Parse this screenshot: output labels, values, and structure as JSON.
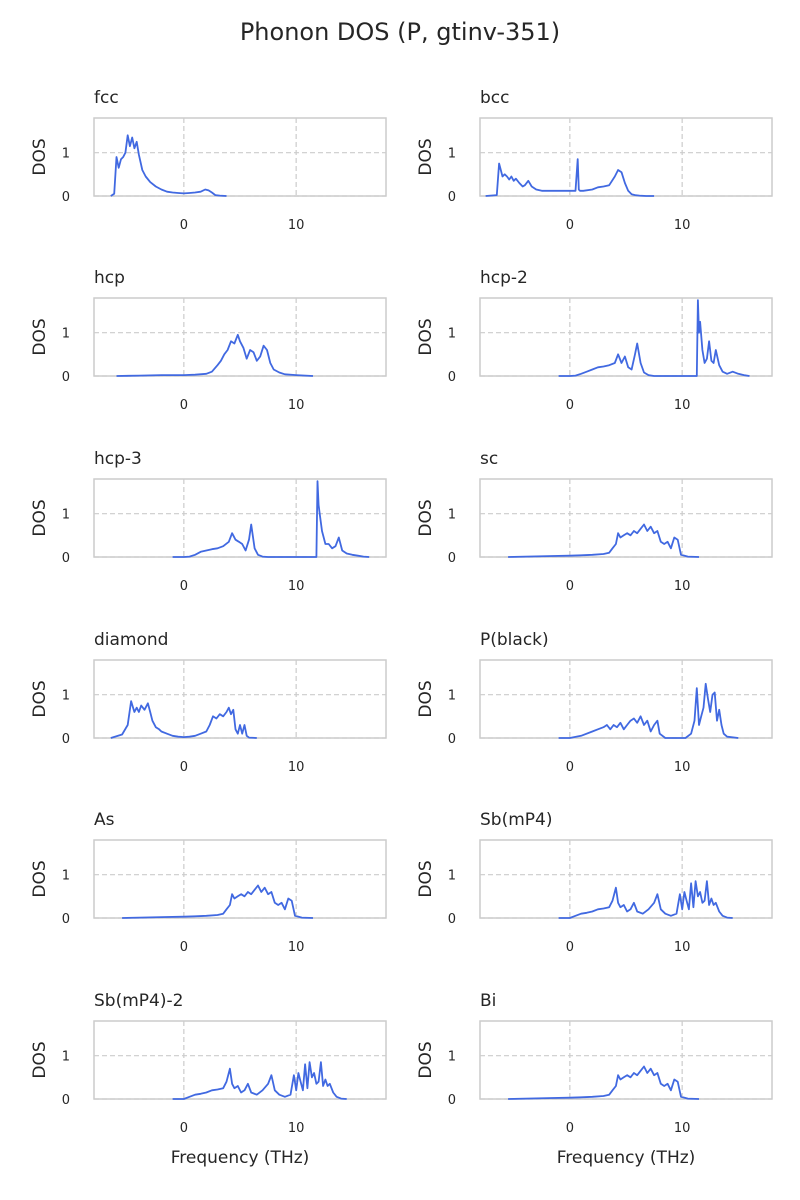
{
  "figure": {
    "title": "Phonon DOS (P, gtinv-351)"
  },
  "colors": {
    "line": "#4169e1",
    "grid": "#cccccc",
    "frame": "#cccccc",
    "text": "#262626"
  },
  "chart_data": [
    {
      "type": "line",
      "title": "fcc",
      "xlabel": "",
      "ylabel": "DOS",
      "xlim": [
        -8,
        18
      ],
      "ylim": [
        0,
        1.8
      ],
      "xticks": [
        0,
        10
      ],
      "yticks": [
        0,
        1
      ],
      "grid": true,
      "legend": "none",
      "x": [
        -6.5,
        -6.2,
        -6.0,
        -5.8,
        -5.6,
        -5.4,
        -5.2,
        -5.0,
        -4.8,
        -4.6,
        -4.4,
        -4.2,
        -4.0,
        -3.7,
        -3.4,
        -3.0,
        -2.5,
        -2.0,
        -1.5,
        -1.0,
        -0.5,
        0.0,
        0.5,
        1.0,
        1.5,
        1.9,
        2.2,
        2.5,
        2.8,
        3.2,
        3.8
      ],
      "y": [
        0.0,
        0.05,
        0.9,
        0.65,
        0.85,
        0.9,
        1.0,
        1.4,
        1.15,
        1.35,
        1.1,
        1.25,
        0.95,
        0.6,
        0.45,
        0.32,
        0.22,
        0.15,
        0.1,
        0.08,
        0.07,
        0.06,
        0.07,
        0.08,
        0.1,
        0.15,
        0.13,
        0.08,
        0.02,
        0.01,
        0.0
      ]
    },
    {
      "type": "line",
      "title": "bcc",
      "xlabel": "",
      "ylabel": "DOS",
      "xlim": [
        -8,
        18
      ],
      "ylim": [
        0,
        1.8
      ],
      "xticks": [
        0,
        10
      ],
      "yticks": [
        0,
        1
      ],
      "grid": true,
      "legend": "none",
      "x": [
        -7.5,
        -6.5,
        -6.3,
        -6.0,
        -5.8,
        -5.6,
        -5.4,
        -5.2,
        -5.0,
        -4.8,
        -4.5,
        -4.2,
        -4.0,
        -3.7,
        -3.4,
        -3.0,
        -2.5,
        -2.0,
        -1.0,
        0.0,
        0.5,
        0.7,
        0.8,
        0.9,
        1.2,
        2.0,
        2.5,
        3.0,
        3.5,
        4.0,
        4.3,
        4.6,
        4.9,
        5.2,
        5.5,
        5.8,
        6.2,
        6.8,
        7.5
      ],
      "y": [
        0.0,
        0.02,
        0.75,
        0.45,
        0.5,
        0.45,
        0.38,
        0.45,
        0.35,
        0.4,
        0.3,
        0.22,
        0.25,
        0.35,
        0.22,
        0.15,
        0.12,
        0.12,
        0.12,
        0.12,
        0.12,
        0.85,
        0.15,
        0.12,
        0.12,
        0.15,
        0.2,
        0.22,
        0.25,
        0.45,
        0.6,
        0.55,
        0.3,
        0.12,
        0.04,
        0.02,
        0.01,
        0.0,
        0.0
      ]
    },
    {
      "type": "line",
      "title": "hcp",
      "xlabel": "",
      "ylabel": "DOS",
      "xlim": [
        -8,
        18
      ],
      "ylim": [
        0,
        1.8
      ],
      "xticks": [
        0,
        10
      ],
      "yticks": [
        0,
        1
      ],
      "grid": true,
      "legend": "none",
      "x": [
        -6.0,
        -4.0,
        -2.0,
        0.0,
        1.0,
        2.0,
        2.5,
        3.0,
        3.3,
        3.6,
        3.9,
        4.2,
        4.5,
        4.8,
        5.0,
        5.3,
        5.6,
        5.9,
        6.2,
        6.5,
        6.8,
        7.1,
        7.4,
        7.7,
        8.0,
        8.5,
        9.0,
        10.0,
        11.5
      ],
      "y": [
        0.0,
        0.01,
        0.02,
        0.02,
        0.03,
        0.05,
        0.1,
        0.25,
        0.35,
        0.5,
        0.6,
        0.8,
        0.75,
        0.95,
        0.8,
        0.65,
        0.4,
        0.6,
        0.55,
        0.35,
        0.45,
        0.7,
        0.6,
        0.3,
        0.15,
        0.08,
        0.04,
        0.02,
        0.0
      ]
    },
    {
      "type": "line",
      "title": "hcp-2",
      "xlabel": "",
      "ylabel": "DOS",
      "xlim": [
        -8,
        18
      ],
      "ylim": [
        0,
        1.8
      ],
      "xticks": [
        0,
        10
      ],
      "yticks": [
        0,
        1
      ],
      "grid": true,
      "legend": "none",
      "x": [
        -1.0,
        0.0,
        0.5,
        1.0,
        1.5,
        2.0,
        2.5,
        3.0,
        3.5,
        4.0,
        4.3,
        4.6,
        4.9,
        5.2,
        5.5,
        5.8,
        6.0,
        6.3,
        6.6,
        7.0,
        7.5,
        8.0,
        9.0,
        10.0,
        11.3,
        11.4,
        11.5,
        11.6,
        11.8,
        12.0,
        12.2,
        12.4,
        12.6,
        12.8,
        13.0,
        13.3,
        13.6,
        14.0,
        14.5,
        15.0,
        15.5,
        16.0
      ],
      "y": [
        0.0,
        0.0,
        0.01,
        0.05,
        0.1,
        0.15,
        0.2,
        0.22,
        0.25,
        0.3,
        0.5,
        0.3,
        0.45,
        0.2,
        0.15,
        0.5,
        0.75,
        0.3,
        0.08,
        0.02,
        0.0,
        0.0,
        0.0,
        0.0,
        0.0,
        1.75,
        1.0,
        1.25,
        0.6,
        0.3,
        0.4,
        0.8,
        0.35,
        0.3,
        0.6,
        0.25,
        0.1,
        0.05,
        0.1,
        0.05,
        0.02,
        0.0
      ]
    },
    {
      "type": "line",
      "title": "hcp-3",
      "xlabel": "",
      "ylabel": "DOS",
      "xlim": [
        -8,
        18
      ],
      "ylim": [
        0,
        1.8
      ],
      "xticks": [
        0,
        10
      ],
      "yticks": [
        0,
        1
      ],
      "grid": true,
      "legend": "none",
      "x": [
        -1.0,
        0.0,
        0.5,
        1.0,
        1.5,
        2.0,
        2.5,
        3.0,
        3.5,
        4.0,
        4.3,
        4.6,
        4.9,
        5.2,
        5.5,
        5.8,
        6.0,
        6.3,
        6.6,
        7.0,
        7.5,
        9.0,
        11.0,
        11.8,
        11.9,
        12.0,
        12.1,
        12.3,
        12.6,
        12.9,
        13.2,
        13.5,
        13.8,
        14.1,
        14.5,
        15.0,
        15.5,
        16.0,
        16.5
      ],
      "y": [
        0.0,
        0.0,
        0.01,
        0.05,
        0.12,
        0.15,
        0.18,
        0.2,
        0.25,
        0.35,
        0.55,
        0.4,
        0.35,
        0.3,
        0.15,
        0.4,
        0.75,
        0.2,
        0.05,
        0.01,
        0.0,
        0.0,
        0.0,
        0.0,
        1.75,
        1.2,
        1.0,
        0.6,
        0.3,
        0.3,
        0.2,
        0.25,
        0.45,
        0.15,
        0.08,
        0.05,
        0.03,
        0.01,
        0.0
      ]
    },
    {
      "type": "line",
      "title": "sc",
      "xlabel": "",
      "ylabel": "DOS",
      "xlim": [
        -8,
        18
      ],
      "ylim": [
        0,
        1.8
      ],
      "xticks": [
        0,
        10
      ],
      "yticks": [
        0,
        1
      ],
      "grid": true,
      "legend": "none",
      "x": [
        -5.5,
        -4.0,
        -2.0,
        0.0,
        1.0,
        2.0,
        3.0,
        3.5,
        3.8,
        4.1,
        4.3,
        4.5,
        4.8,
        5.1,
        5.4,
        5.7,
        6.0,
        6.3,
        6.6,
        6.9,
        7.2,
        7.5,
        7.8,
        8.1,
        8.4,
        8.7,
        9.0,
        9.3,
        9.6,
        9.9,
        10.5,
        11.5
      ],
      "y": [
        0.0,
        0.01,
        0.02,
        0.03,
        0.04,
        0.05,
        0.07,
        0.1,
        0.2,
        0.3,
        0.55,
        0.45,
        0.5,
        0.55,
        0.5,
        0.6,
        0.55,
        0.65,
        0.75,
        0.6,
        0.7,
        0.55,
        0.6,
        0.35,
        0.3,
        0.35,
        0.2,
        0.45,
        0.4,
        0.05,
        0.01,
        0.0
      ]
    },
    {
      "type": "line",
      "title": "diamond",
      "xlabel": "",
      "ylabel": "DOS",
      "xlim": [
        -8,
        18
      ],
      "ylim": [
        0,
        1.8
      ],
      "xticks": [
        0,
        10
      ],
      "yticks": [
        0,
        1
      ],
      "grid": true,
      "legend": "none",
      "x": [
        -6.5,
        -5.5,
        -5.0,
        -4.7,
        -4.4,
        -4.2,
        -4.0,
        -3.8,
        -3.5,
        -3.2,
        -3.0,
        -2.8,
        -2.5,
        -2.2,
        -2.0,
        -1.5,
        -1.0,
        -0.5,
        0.0,
        0.5,
        1.0,
        1.5,
        2.0,
        2.3,
        2.6,
        2.9,
        3.2,
        3.5,
        3.8,
        4.0,
        4.2,
        4.4,
        4.6,
        4.8,
        5.0,
        5.2,
        5.4,
        5.6,
        5.8,
        6.5
      ],
      "y": [
        0.0,
        0.08,
        0.3,
        0.85,
        0.6,
        0.7,
        0.6,
        0.75,
        0.65,
        0.8,
        0.6,
        0.4,
        0.25,
        0.2,
        0.15,
        0.1,
        0.05,
        0.03,
        0.02,
        0.03,
        0.05,
        0.1,
        0.15,
        0.3,
        0.5,
        0.45,
        0.55,
        0.5,
        0.6,
        0.7,
        0.55,
        0.65,
        0.2,
        0.1,
        0.3,
        0.1,
        0.3,
        0.05,
        0.01,
        0.0
      ]
    },
    {
      "type": "line",
      "title": "P(black)",
      "xlabel": "",
      "ylabel": "DOS",
      "xlim": [
        -8,
        18
      ],
      "ylim": [
        0,
        1.8
      ],
      "xticks": [
        0,
        10
      ],
      "yticks": [
        0,
        1
      ],
      "grid": true,
      "legend": "none",
      "x": [
        -1.0,
        0.0,
        1.0,
        2.0,
        2.5,
        3.0,
        3.3,
        3.6,
        3.9,
        4.2,
        4.5,
        4.8,
        5.1,
        5.4,
        5.7,
        6.0,
        6.3,
        6.6,
        6.9,
        7.2,
        7.5,
        7.8,
        8.0,
        8.5,
        9.5,
        10.3,
        10.8,
        11.1,
        11.3,
        11.5,
        11.7,
        11.9,
        12.1,
        12.3,
        12.5,
        12.7,
        12.9,
        13.1,
        13.3,
        13.5,
        13.7,
        14.0,
        15.0
      ],
      "y": [
        0.0,
        0.0,
        0.05,
        0.15,
        0.2,
        0.25,
        0.3,
        0.2,
        0.3,
        0.25,
        0.35,
        0.2,
        0.3,
        0.4,
        0.45,
        0.35,
        0.5,
        0.3,
        0.4,
        0.15,
        0.3,
        0.4,
        0.1,
        0.0,
        0.0,
        0.0,
        0.1,
        0.4,
        1.15,
        0.3,
        0.5,
        0.7,
        1.25,
        0.9,
        0.6,
        1.0,
        1.05,
        0.4,
        0.65,
        0.3,
        0.1,
        0.03,
        0.0
      ]
    },
    {
      "type": "line",
      "title": "As",
      "xlabel": "",
      "ylabel": "DOS",
      "xlim": [
        -8,
        18
      ],
      "ylim": [
        0,
        1.8
      ],
      "xticks": [
        0,
        10
      ],
      "yticks": [
        0,
        1
      ],
      "grid": true,
      "legend": "none",
      "x": [
        -5.5,
        -4.0,
        -2.0,
        0.0,
        1.0,
        2.0,
        3.0,
        3.5,
        3.8,
        4.1,
        4.3,
        4.5,
        4.8,
        5.1,
        5.4,
        5.7,
        6.0,
        6.3,
        6.6,
        6.9,
        7.2,
        7.5,
        7.8,
        8.1,
        8.4,
        8.7,
        9.0,
        9.3,
        9.6,
        9.9,
        10.5,
        11.5
      ],
      "y": [
        0.0,
        0.01,
        0.02,
        0.03,
        0.04,
        0.05,
        0.07,
        0.1,
        0.2,
        0.3,
        0.55,
        0.45,
        0.5,
        0.55,
        0.5,
        0.6,
        0.55,
        0.65,
        0.75,
        0.6,
        0.7,
        0.55,
        0.6,
        0.35,
        0.3,
        0.35,
        0.2,
        0.45,
        0.4,
        0.05,
        0.01,
        0.0
      ]
    },
    {
      "type": "line",
      "title": "Sb(mP4)",
      "xlabel": "",
      "ylabel": "DOS",
      "xlim": [
        -8,
        18
      ],
      "ylim": [
        0,
        1.8
      ],
      "xticks": [
        0,
        10
      ],
      "yticks": [
        0,
        1
      ],
      "grid": true,
      "legend": "none",
      "x": [
        -1.0,
        0.0,
        0.5,
        1.0,
        1.5,
        2.0,
        2.5,
        3.0,
        3.5,
        3.8,
        4.1,
        4.3,
        4.5,
        4.8,
        5.1,
        5.4,
        5.7,
        6.0,
        6.5,
        7.0,
        7.5,
        7.8,
        8.1,
        8.5,
        9.0,
        9.5,
        9.8,
        10.0,
        10.2,
        10.4,
        10.6,
        10.8,
        11.0,
        11.2,
        11.4,
        11.6,
        11.8,
        12.0,
        12.2,
        12.4,
        12.6,
        12.8,
        13.0,
        13.3,
        13.6,
        14.0,
        14.5
      ],
      "y": [
        0.0,
        0.0,
        0.05,
        0.1,
        0.12,
        0.15,
        0.2,
        0.22,
        0.25,
        0.4,
        0.7,
        0.35,
        0.25,
        0.3,
        0.15,
        0.2,
        0.35,
        0.15,
        0.1,
        0.2,
        0.35,
        0.55,
        0.2,
        0.1,
        0.05,
        0.1,
        0.55,
        0.2,
        0.6,
        0.4,
        0.2,
        0.8,
        0.25,
        0.85,
        0.5,
        0.6,
        0.35,
        0.4,
        0.85,
        0.3,
        0.45,
        0.3,
        0.35,
        0.15,
        0.05,
        0.01,
        0.0
      ]
    },
    {
      "type": "line",
      "title": "Sb(mP4)-2",
      "xlabel": "Frequency (THz)",
      "ylabel": "DOS",
      "xlim": [
        -8,
        18
      ],
      "ylim": [
        0,
        1.8
      ],
      "xticks": [
        0,
        10
      ],
      "yticks": [
        0,
        1
      ],
      "grid": true,
      "legend": "none",
      "x": [
        -1.0,
        0.0,
        0.5,
        1.0,
        1.5,
        2.0,
        2.5,
        3.0,
        3.5,
        3.8,
        4.1,
        4.3,
        4.5,
        4.8,
        5.1,
        5.4,
        5.7,
        6.0,
        6.5,
        7.0,
        7.5,
        7.8,
        8.1,
        8.5,
        9.0,
        9.5,
        9.8,
        10.0,
        10.2,
        10.4,
        10.6,
        10.8,
        11.0,
        11.2,
        11.4,
        11.6,
        11.8,
        12.0,
        12.2,
        12.4,
        12.6,
        12.8,
        13.0,
        13.3,
        13.6,
        14.0,
        14.5
      ],
      "y": [
        0.0,
        0.0,
        0.05,
        0.1,
        0.12,
        0.15,
        0.2,
        0.22,
        0.25,
        0.4,
        0.7,
        0.35,
        0.25,
        0.3,
        0.15,
        0.2,
        0.35,
        0.15,
        0.1,
        0.2,
        0.35,
        0.55,
        0.2,
        0.1,
        0.05,
        0.1,
        0.55,
        0.2,
        0.6,
        0.4,
        0.2,
        0.8,
        0.25,
        0.85,
        0.5,
        0.6,
        0.35,
        0.4,
        0.85,
        0.3,
        0.45,
        0.3,
        0.35,
        0.15,
        0.05,
        0.01,
        0.0
      ]
    },
    {
      "type": "line",
      "title": "Bi",
      "xlabel": "Frequency (THz)",
      "ylabel": "DOS",
      "xlim": [
        -8,
        18
      ],
      "ylim": [
        0,
        1.8
      ],
      "xticks": [
        0,
        10
      ],
      "yticks": [
        0,
        1
      ],
      "grid": true,
      "legend": "none",
      "x": [
        -5.5,
        -4.0,
        -2.0,
        0.0,
        1.0,
        2.0,
        3.0,
        3.5,
        3.8,
        4.1,
        4.3,
        4.5,
        4.8,
        5.1,
        5.4,
        5.7,
        6.0,
        6.3,
        6.6,
        6.9,
        7.2,
        7.5,
        7.8,
        8.1,
        8.4,
        8.7,
        9.0,
        9.3,
        9.6,
        9.9,
        10.5,
        11.5
      ],
      "y": [
        0.0,
        0.01,
        0.02,
        0.03,
        0.04,
        0.05,
        0.07,
        0.1,
        0.2,
        0.3,
        0.55,
        0.45,
        0.5,
        0.55,
        0.5,
        0.6,
        0.55,
        0.65,
        0.75,
        0.6,
        0.7,
        0.55,
        0.6,
        0.35,
        0.3,
        0.35,
        0.2,
        0.45,
        0.4,
        0.05,
        0.01,
        0.0
      ]
    }
  ]
}
